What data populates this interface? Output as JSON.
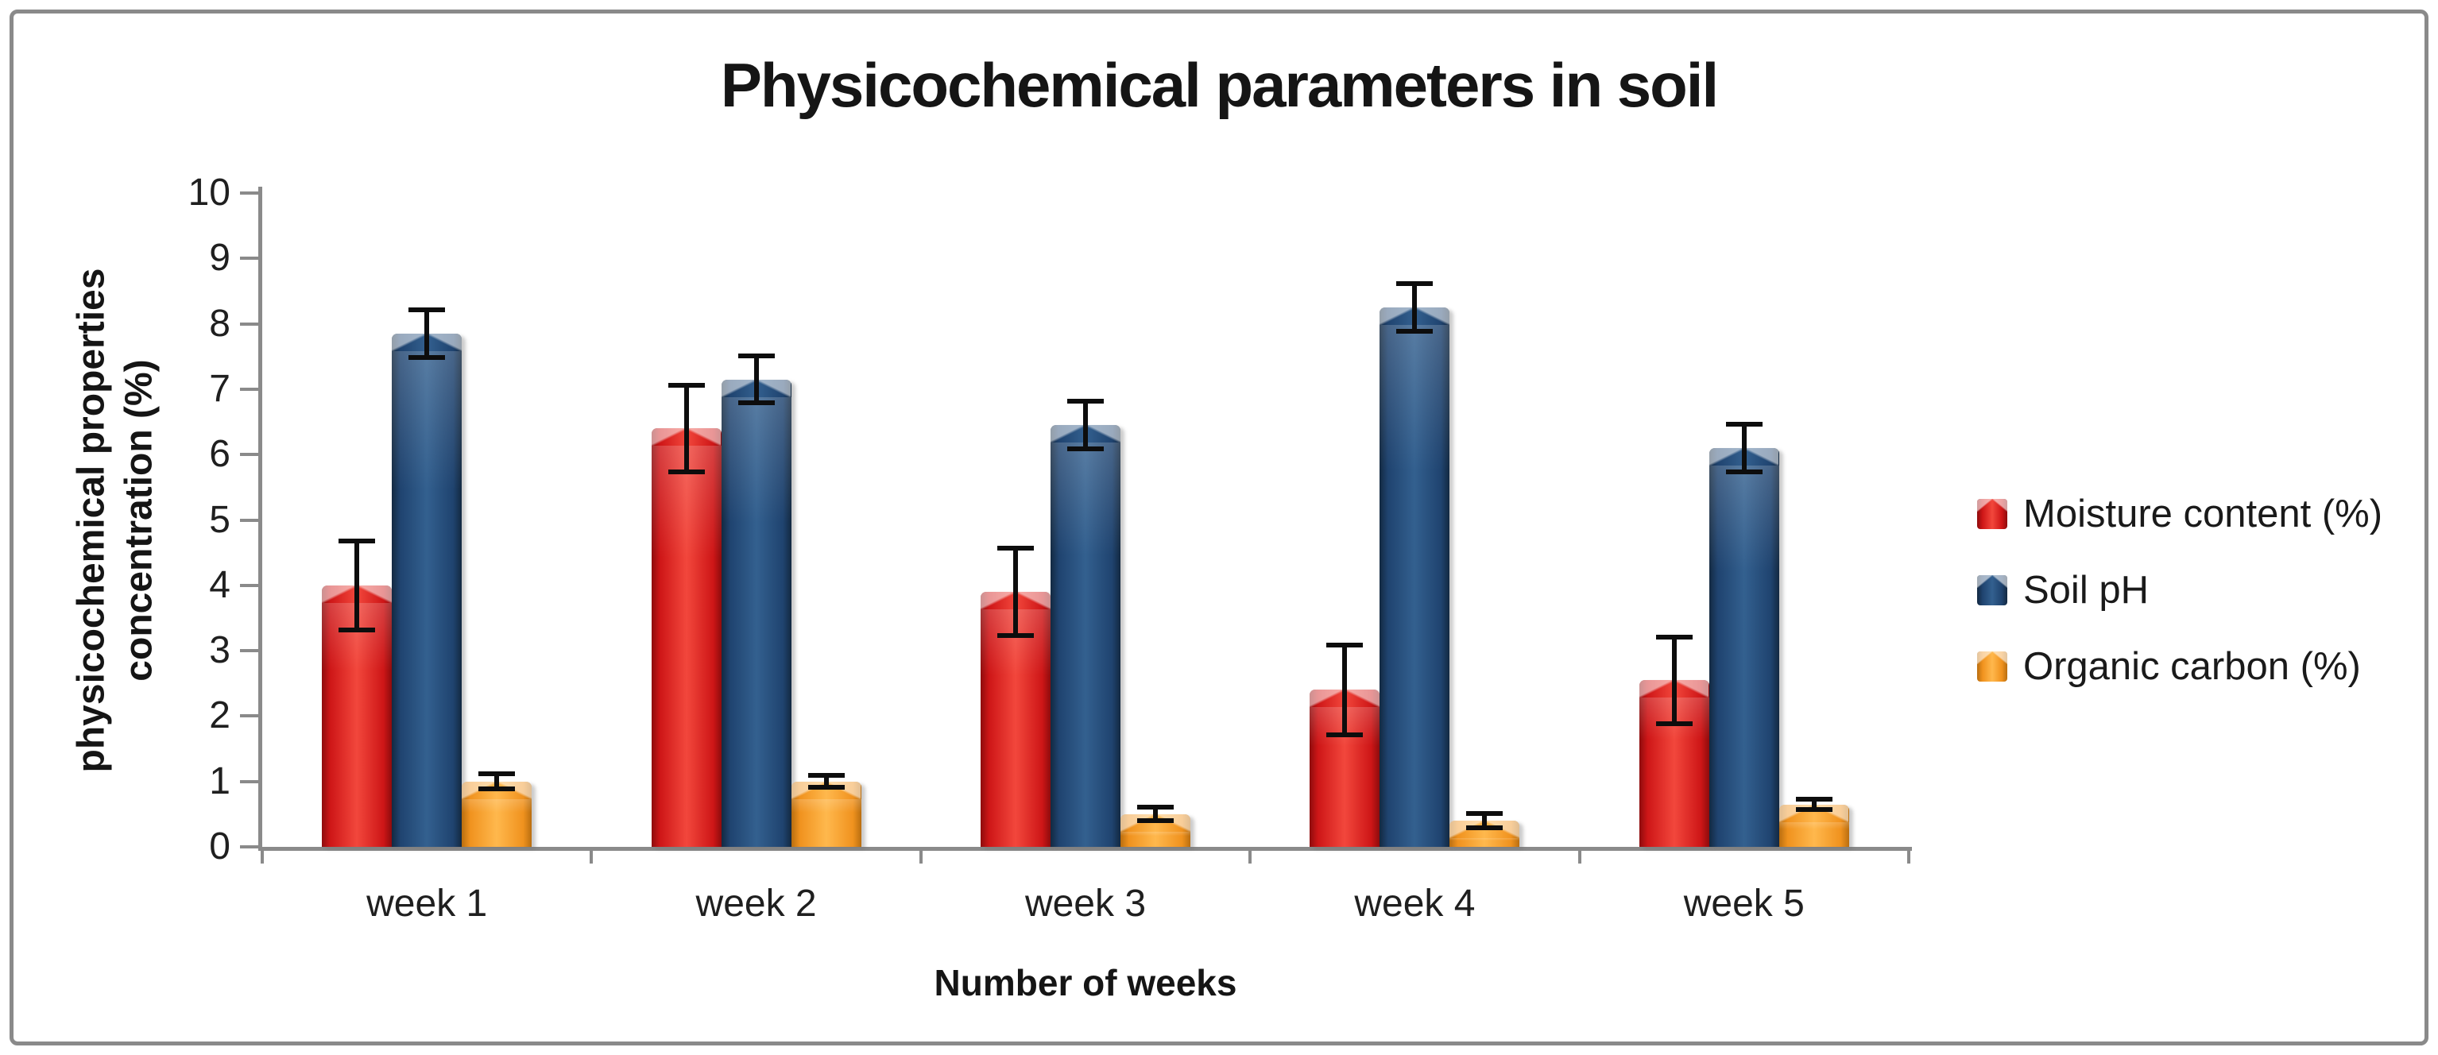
{
  "figure": {
    "title": "Physicochemical parameters in soil",
    "border_color": "#8a8a8a",
    "background": "#ffffff"
  },
  "axes": {
    "y_title_line1": "physicochemical properties",
    "y_title_line2": "concentration (%)",
    "x_title": "Number of weeks",
    "axis_color": "#8a8a8a",
    "tick_text_color": "#1f1f1f"
  },
  "chart_data": {
    "type": "bar",
    "title": "Physicochemical parameters in soil",
    "xlabel": "Number of weeks",
    "ylabel": "physicochemical properties concentration (%)",
    "categories": [
      "week 1",
      "week 2",
      "week 3",
      "week 4",
      "week 5"
    ],
    "ylim": [
      0,
      10
    ],
    "ytick_step": 1,
    "grid": false,
    "legend_position": "right",
    "error_bar_color": "#0d0d0d",
    "series": [
      {
        "name": "Moisture content (%)",
        "color": "#CE1617",
        "color_light": "#F2473C",
        "color_dark": "#8E0C0D",
        "values": [
          4.0,
          6.4,
          3.9,
          2.4,
          2.55
        ],
        "errors": [
          0.72,
          0.7,
          0.7,
          0.72,
          0.7
        ]
      },
      {
        "name": "Soil pH",
        "color": "#1F436F",
        "color_light": "#33608F",
        "color_dark": "#132941",
        "values": [
          7.85,
          7.15,
          6.45,
          8.25,
          6.1
        ],
        "errors": [
          0.4,
          0.4,
          0.4,
          0.4,
          0.4
        ]
      },
      {
        "name": "Organic carbon (%)",
        "color": "#F0921E",
        "color_light": "#FFB84D",
        "color_dark": "#B96E10",
        "values": [
          1.0,
          1.0,
          0.5,
          0.4,
          0.65
        ],
        "errors": [
          0.15,
          0.13,
          0.14,
          0.15,
          0.12
        ]
      }
    ]
  }
}
